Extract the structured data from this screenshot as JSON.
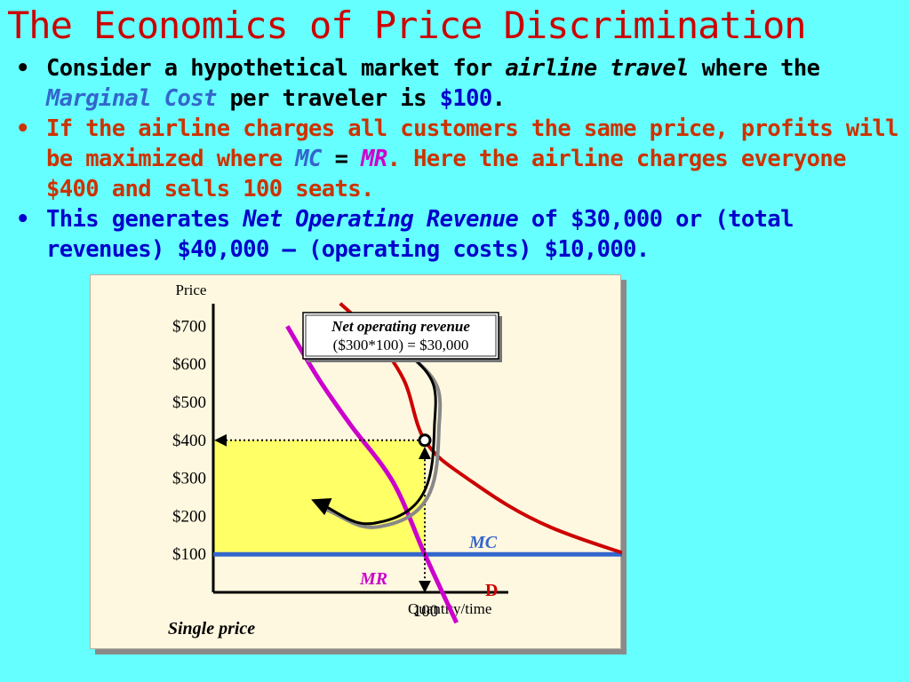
{
  "slide": {
    "title": "The Economics of Price Discrimination",
    "bullet_marker": "•",
    "bullets": [
      {
        "parts": [
          "Consider a hypothetical market for ",
          "airline travel",
          " where the ",
          "Marginal Cost",
          " per traveler is ",
          "$100",
          "."
        ]
      },
      {
        "parts": [
          "If the airline charges all customers the same price, profits will be maximized where ",
          "MC",
          " = ",
          "MR",
          ".  Here the airline charges everyone $400 and sells 100 seats."
        ]
      },
      {
        "parts": [
          "This generates ",
          "Net Operating Revenue",
          " of $30,000 or (total revenues) $40,000 – (operating costs) $10,000."
        ]
      }
    ]
  },
  "chart_data": {
    "type": "line",
    "ylabel": "Price",
    "xlabel": "Quantity/time",
    "y_ticks": [
      "$700",
      "$600",
      "$500",
      "$400",
      "$300",
      "$200",
      "$100"
    ],
    "x_ticks": [
      "100"
    ],
    "ylim": [
      0,
      800
    ],
    "series": [
      {
        "name": "MC",
        "color": "#3366cc",
        "points": [
          [
            0,
            100
          ],
          [
            290,
            100
          ]
        ]
      },
      {
        "name": "MR",
        "color": "#cc00cc",
        "points": [
          [
            35,
            700
          ],
          [
            50,
            560
          ],
          [
            65,
            440
          ],
          [
            85,
            290
          ],
          [
            100,
            100
          ],
          [
            115,
            -80
          ]
        ]
      },
      {
        "name": "D",
        "color": "#cc0000",
        "points": [
          [
            60,
            760
          ],
          [
            75,
            680
          ],
          [
            90,
            560
          ],
          [
            100,
            400
          ],
          [
            120,
            300
          ],
          [
            160,
            170
          ],
          [
            230,
            40
          ]
        ]
      }
    ],
    "equilibrium": {
      "quantity": 100,
      "price": 400
    },
    "shaded_region": {
      "label": "Net operating revenue",
      "x": [
        0,
        100
      ],
      "y": [
        100,
        400
      ],
      "color": "#ffff66"
    },
    "annotation": {
      "line1": "Net operating revenue",
      "line2": "($300*100) = $30,000"
    },
    "caption": "Single price"
  }
}
